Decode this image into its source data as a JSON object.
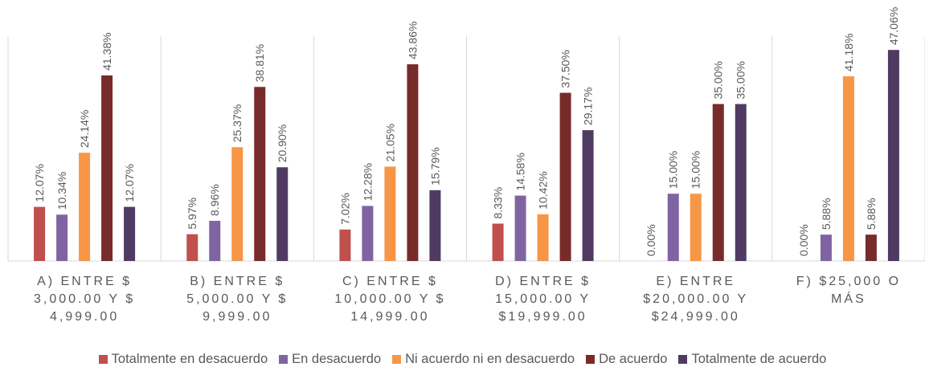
{
  "chart_data": {
    "type": "bar",
    "categories": [
      "A) ENTRE $ 3,000.00 Y $ 4,999.00",
      "B) ENTRE $ 5,000.00 Y $ 9,999.00",
      "C) ENTRE $ 10,000.00 Y $ 14,999.00",
      "D) ENTRE $ 15,000.00 Y $19,999.00",
      "E) ENTRE $20,000.00 Y $24,999.00",
      "F) $25,000 O MÁS"
    ],
    "series": [
      {
        "name": "Totalmente en desacuerdo",
        "color": "#c0504d",
        "values": [
          12.07,
          5.97,
          7.02,
          8.33,
          0,
          0
        ],
        "value_labels": [
          "12.07%",
          "5.97%",
          "7.02%",
          "8.33%",
          "0.00%",
          "0.00%"
        ]
      },
      {
        "name": "En desacuerdo",
        "color": "#8064a2",
        "values": [
          10.34,
          8.96,
          12.28,
          14.58,
          15.0,
          5.88
        ],
        "value_labels": [
          "10.34%",
          "8.96%",
          "12.28%",
          "14.58%",
          "15.00%",
          "5.88%"
        ]
      },
      {
        "name": "Ni acuerdo ni en desacuerdo",
        "color": "#f79646",
        "values": [
          24.14,
          25.37,
          21.05,
          10.42,
          15.0,
          41.18
        ],
        "value_labels": [
          "24.14%",
          "25.37%",
          "21.05%",
          "10.42%",
          "15.00%",
          "41.18%"
        ]
      },
      {
        "name": "De acuerdo",
        "color": "#772c2a",
        "values": [
          41.38,
          38.81,
          43.86,
          37.5,
          35.0,
          5.88
        ],
        "value_labels": [
          "41.38%",
          "38.81%",
          "43.86%",
          "37.50%",
          "35.00%",
          "5.88%"
        ]
      },
      {
        "name": "Totalmente de acuerdo",
        "color": "#4f3b62",
        "values": [
          12.07,
          20.9,
          15.79,
          29.17,
          35.0,
          47.06
        ],
        "value_labels": [
          "12.07%",
          "20.90%",
          "15.79%",
          "29.17%",
          "35.00%",
          "47.06%"
        ]
      }
    ]
  }
}
